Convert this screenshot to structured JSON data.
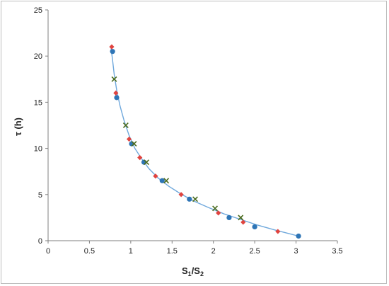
{
  "chart_data": {
    "type": "scatter",
    "title": "",
    "xlabel": {
      "main": "S",
      "sub1": "1",
      "slash": "/S",
      "sub2": "2"
    },
    "ylabel": "τ (h)",
    "xlim": [
      0,
      3.5
    ],
    "ylim": [
      0,
      25
    ],
    "xticks": [
      "0",
      "0.5",
      "1",
      "1.5",
      "2",
      "2.5",
      "3",
      "3.5"
    ],
    "yticks": [
      "0",
      "5",
      "10",
      "15",
      "20",
      "25"
    ],
    "grid": false,
    "legend": "none",
    "series": [
      {
        "marker": "circle",
        "color": "#2e75b6",
        "points": [
          [
            0.78,
            20.5
          ],
          [
            0.83,
            15.5
          ],
          [
            1.01,
            10.5
          ],
          [
            1.16,
            8.5
          ],
          [
            1.38,
            6.5
          ],
          [
            1.71,
            4.5
          ],
          [
            2.19,
            2.5
          ],
          [
            2.5,
            1.5
          ],
          [
            3.03,
            0.5
          ]
        ]
      },
      {
        "marker": "diamond",
        "color": "#e0443f",
        "points": [
          [
            0.77,
            21.0
          ],
          [
            0.82,
            16.0
          ],
          [
            0.98,
            11.0
          ],
          [
            1.11,
            9.0
          ],
          [
            1.3,
            7.0
          ],
          [
            1.61,
            5.0
          ],
          [
            2.06,
            3.0
          ],
          [
            2.36,
            2.0
          ],
          [
            2.78,
            1.0
          ]
        ]
      },
      {
        "marker": "x",
        "color": "#4a6b1e",
        "points": [
          [
            0.8,
            17.5
          ],
          [
            0.94,
            12.5
          ],
          [
            1.04,
            10.5
          ],
          [
            1.19,
            8.5
          ],
          [
            1.43,
            6.5
          ],
          [
            1.78,
            4.5
          ],
          [
            2.02,
            3.5
          ],
          [
            2.33,
            2.5
          ]
        ]
      }
    ],
    "fit_curve": {
      "color": "#6fa8dc",
      "points": [
        [
          0.76,
          21.0
        ],
        [
          0.78,
          19.6
        ],
        [
          0.8,
          18.0
        ],
        [
          0.83,
          16.3
        ],
        [
          0.87,
          14.6
        ],
        [
          0.92,
          13.0
        ],
        [
          0.98,
          11.4
        ],
        [
          1.05,
          10.0
        ],
        [
          1.13,
          8.9
        ],
        [
          1.22,
          7.8
        ],
        [
          1.33,
          6.8
        ],
        [
          1.46,
          5.9
        ],
        [
          1.6,
          5.1
        ],
        [
          1.76,
          4.3
        ],
        [
          1.94,
          3.6
        ],
        [
          2.13,
          2.9
        ],
        [
          2.33,
          2.3
        ],
        [
          2.53,
          1.7
        ],
        [
          2.73,
          1.2
        ],
        [
          2.9,
          0.8
        ],
        [
          3.03,
          0.5
        ]
      ]
    }
  }
}
